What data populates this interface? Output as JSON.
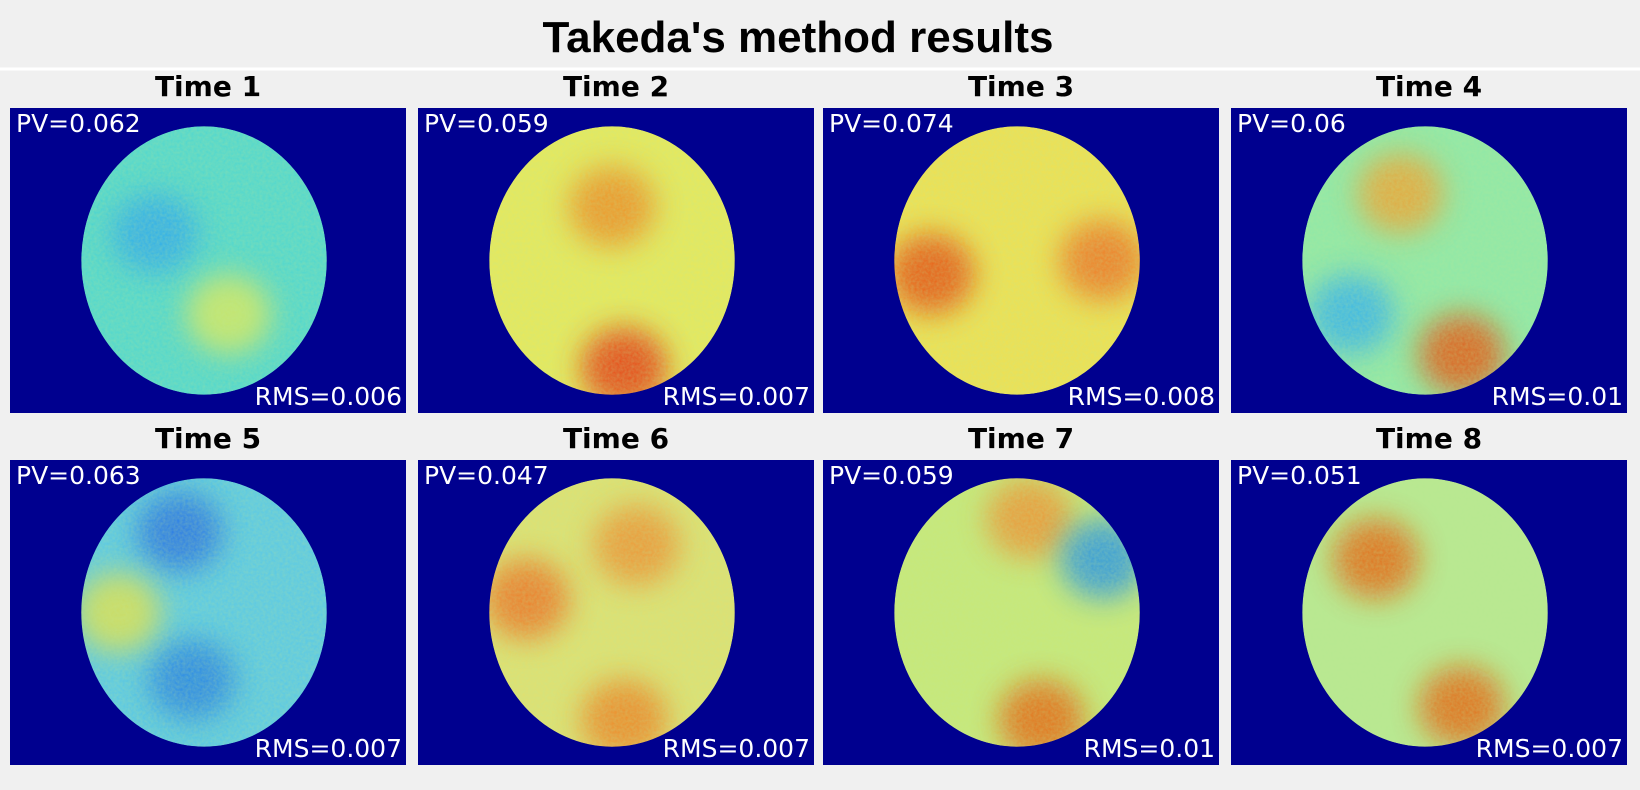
{
  "header": {
    "title": "Takeda's method results"
  },
  "panels": [
    {
      "title": "Time 1",
      "pv": "PV=0.062",
      "rms": "RMS=0.006"
    },
    {
      "title": "Time 2",
      "pv": "PV=0.059",
      "rms": "RMS=0.007"
    },
    {
      "title": "Time 3",
      "pv": "PV=0.074",
      "rms": "RMS=0.008"
    },
    {
      "title": "Time 4",
      "pv": "PV=0.06",
      "rms": "RMS=0.01"
    },
    {
      "title": "Time 5",
      "pv": "PV=0.063",
      "rms": "RMS=0.007"
    },
    {
      "title": "Time 6",
      "pv": "PV=0.047",
      "rms": "RMS=0.007"
    },
    {
      "title": "Time 7",
      "pv": "PV=0.059",
      "rms": "RMS=0.01"
    },
    {
      "title": "Time 8",
      "pv": "PV=0.051",
      "rms": "RMS=0.007"
    }
  ]
}
